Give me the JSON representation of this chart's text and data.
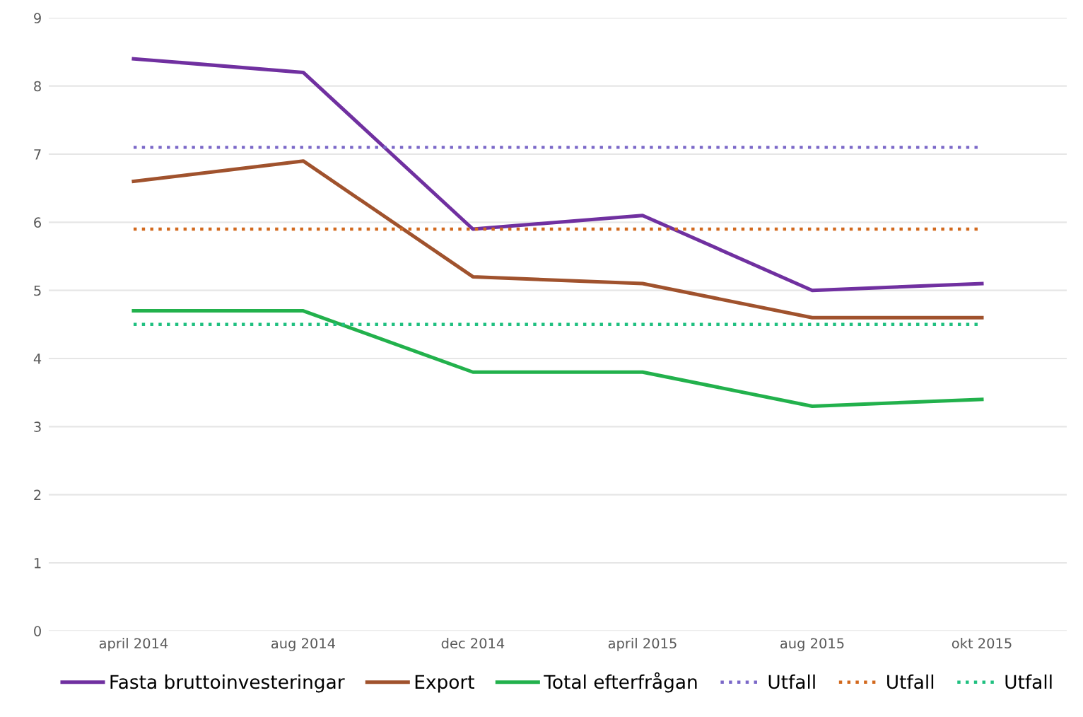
{
  "chart_data": {
    "type": "line",
    "categories": [
      "april 2014",
      "aug 2014",
      "dec 2014",
      "april 2015",
      "aug 2015",
      "okt 2015"
    ],
    "ylim": [
      0,
      9
    ],
    "yticks": [
      0,
      1,
      2,
      3,
      4,
      5,
      6,
      7,
      8,
      9
    ],
    "grid": "y",
    "legend": "bottom",
    "marker": "none",
    "series": [
      {
        "name": "Fasta bruttoinvesteringar",
        "color": "#7030a0",
        "values": [
          8.4,
          8.2,
          5.9,
          6.1,
          5.0,
          5.1
        ]
      },
      {
        "name": "Export",
        "color": "#a0522d",
        "values": [
          6.6,
          6.9,
          5.2,
          5.1,
          4.6,
          4.6
        ]
      },
      {
        "name": "Total efterfrågan",
        "color": "#22b14c",
        "values": [
          4.7,
          4.7,
          3.8,
          3.8,
          3.3,
          3.4
        ]
      },
      {
        "name": "Utfall",
        "color": "#7b68c8",
        "line_style": "dotted",
        "values": [
          7.1,
          7.1,
          7.1,
          7.1,
          7.1,
          7.1
        ]
      },
      {
        "name": "Utfall",
        "color": "#d2691e",
        "line_style": "dotted",
        "values": [
          5.9,
          5.9,
          5.9,
          5.9,
          5.9,
          5.9
        ]
      },
      {
        "name": "Utfall",
        "color": "#20c080",
        "line_style": "dotted",
        "values": [
          4.5,
          4.5,
          4.5,
          4.5,
          4.5,
          4.5
        ]
      }
    ]
  }
}
